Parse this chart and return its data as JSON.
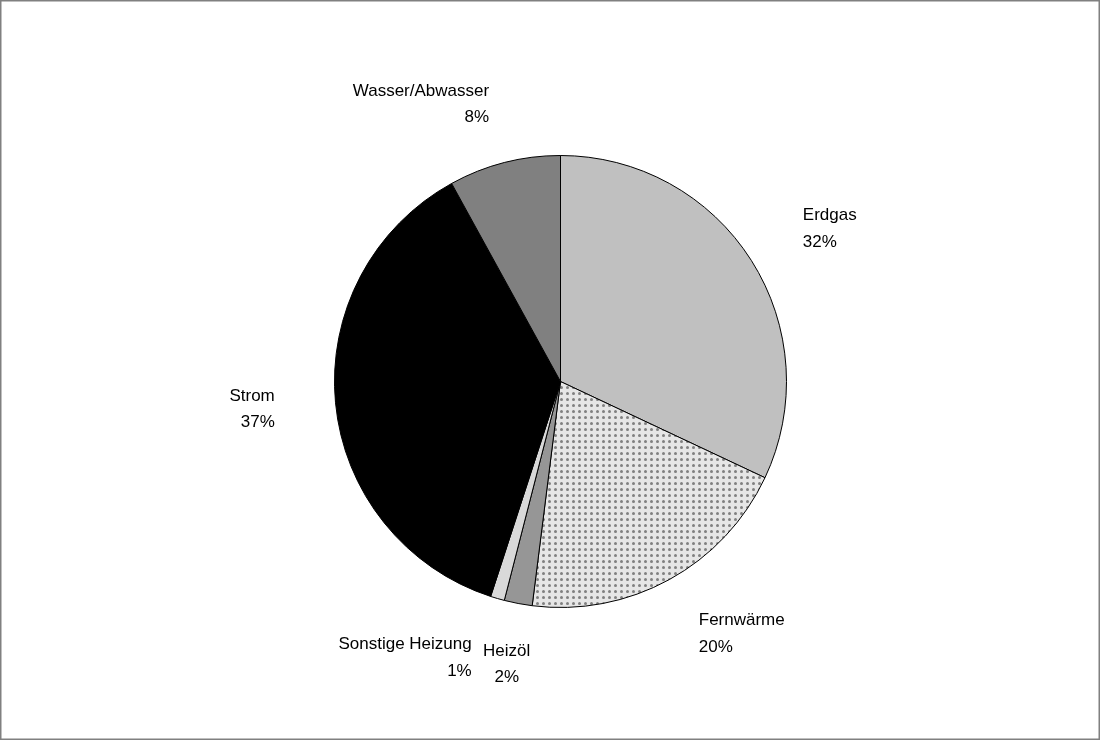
{
  "chart_data": {
    "type": "pie",
    "categories": [
      "Erdgas",
      "Fernwärme",
      "Heizöl",
      "Sonstige Heizung",
      "Strom",
      "Wasser/Abwasser"
    ],
    "values": [
      32,
      20,
      2,
      1,
      37,
      8
    ],
    "colors": [
      "#c0c0c0",
      "#e6e6e6",
      "#969696",
      "#d9d9d9",
      "#000000",
      "#808080"
    ],
    "value_labels": [
      "32%",
      "20%",
      "2%",
      "1%",
      "37%",
      "8%"
    ]
  }
}
